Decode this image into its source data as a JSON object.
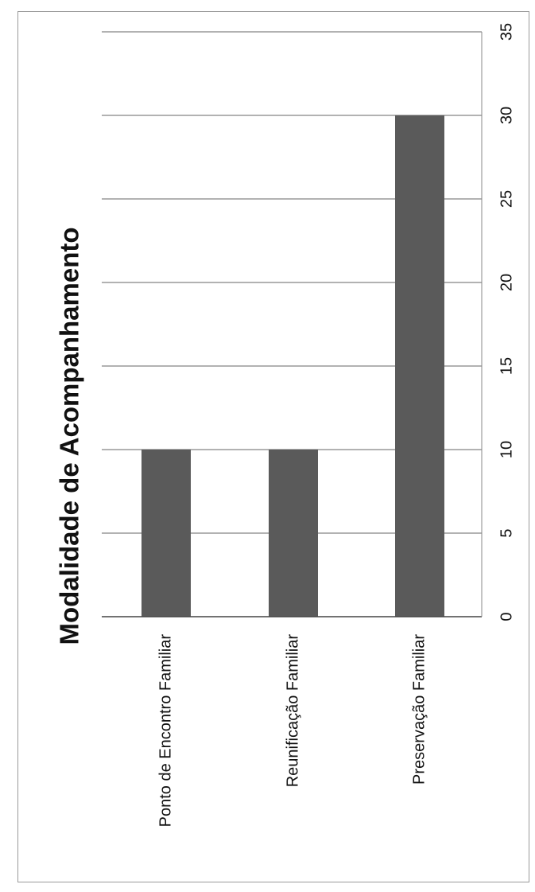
{
  "chart_data": {
    "type": "bar",
    "orientation": "horizontal",
    "title": "Modalidade de Acompanhamento",
    "categories": [
      "Ponto de Encontro Familiar",
      "Reunificação Familiar",
      "Preservação Familiar"
    ],
    "values": [
      10,
      10,
      30
    ],
    "xlim": [
      0,
      35
    ],
    "ticks": [
      0,
      5,
      10,
      15,
      20,
      25,
      30,
      35
    ],
    "grid": true,
    "bar_color": "#5a5a5a",
    "grid_color": "#666666"
  }
}
